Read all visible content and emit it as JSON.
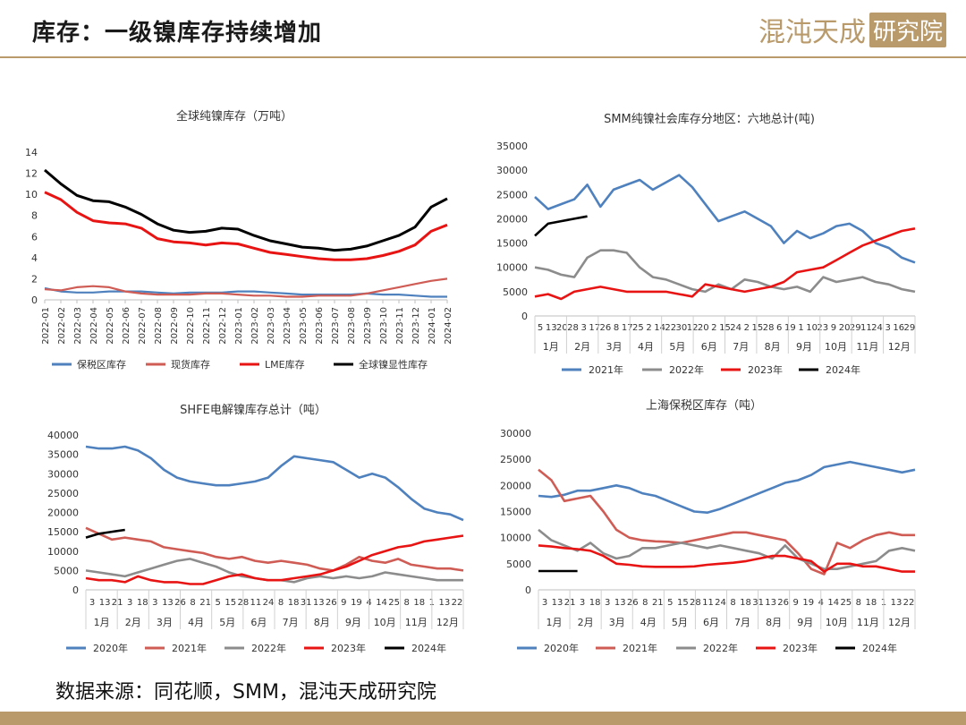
{
  "header": {
    "title": "库存：一级镍库存持续增加",
    "brand_main": "混沌天成",
    "brand_box": "研究院"
  },
  "footer": {
    "source": "数据来源：同花顺，SMM，混沌天成研究院"
  },
  "colors": {
    "blue": "#4e81bd",
    "salmon": "#cf5c55",
    "gray": "#8c8c8c",
    "red": "#e81414",
    "black": "#000000",
    "gold": "#b99a6b"
  },
  "chart_data": [
    {
      "id": "global",
      "type": "line",
      "title": "全球纯镍库存（万吨）",
      "ylim": [
        0,
        14
      ],
      "yticks": [
        0,
        2,
        4,
        6,
        8,
        10,
        12,
        14
      ],
      "x": [
        "2022-01",
        "2022-02",
        "2022-03",
        "2022-04",
        "2022-05",
        "2022-06",
        "2022-07",
        "2022-08",
        "2022-09",
        "2022-10",
        "2022-11",
        "2022-12",
        "2023-01",
        "2023-02",
        "2023-03",
        "2023-04",
        "2023-05",
        "2023-06",
        "2023-07",
        "2023-08",
        "2023-09",
        "2023-10",
        "2023-11",
        "2023-12",
        "2024-01",
        "2024-02"
      ],
      "series": [
        {
          "name": "保税区库存",
          "color": "#4e81bd",
          "values": [
            1.1,
            0.8,
            0.7,
            0.7,
            0.8,
            0.8,
            0.8,
            0.7,
            0.6,
            0.7,
            0.7,
            0.7,
            0.8,
            0.8,
            0.7,
            0.6,
            0.5,
            0.5,
            0.5,
            0.5,
            0.6,
            0.5,
            0.5,
            0.4,
            0.3,
            0.3
          ]
        },
        {
          "name": "现货库存",
          "color": "#cf5c55",
          "values": [
            1.0,
            0.9,
            1.2,
            1.3,
            1.2,
            0.8,
            0.6,
            0.5,
            0.5,
            0.5,
            0.6,
            0.6,
            0.5,
            0.4,
            0.4,
            0.3,
            0.3,
            0.4,
            0.4,
            0.4,
            0.6,
            0.9,
            1.2,
            1.5,
            1.8,
            2.0
          ]
        },
        {
          "name": "LME库存",
          "color": "#e81414",
          "values": [
            10.2,
            9.5,
            8.3,
            7.5,
            7.3,
            7.2,
            6.8,
            5.8,
            5.5,
            5.4,
            5.2,
            5.4,
            5.3,
            4.9,
            4.5,
            4.3,
            4.1,
            3.9,
            3.8,
            3.8,
            3.9,
            4.2,
            4.6,
            5.2,
            6.5,
            7.1
          ]
        },
        {
          "name": "全球镍显性库存",
          "color": "#000000",
          "values": [
            12.3,
            11.0,
            9.9,
            9.4,
            9.3,
            8.8,
            8.1,
            7.2,
            6.6,
            6.4,
            6.5,
            6.8,
            6.7,
            6.1,
            5.6,
            5.3,
            5.0,
            4.9,
            4.7,
            4.8,
            5.1,
            5.6,
            6.1,
            6.9,
            8.8,
            9.6
          ]
        }
      ]
    },
    {
      "id": "smm",
      "type": "line",
      "title": "SMM纯镍社会库存分地区：六地总计(吨)",
      "ylim": [
        0,
        35000
      ],
      "yticks": [
        0,
        5000,
        10000,
        15000,
        20000,
        25000,
        30000,
        35000
      ],
      "tick_labels": [
        "5",
        "13",
        "20",
        "28",
        "3",
        "17",
        "26",
        "8",
        "17",
        "25",
        "2",
        "14",
        "22",
        "30",
        "12",
        "20",
        "2",
        "15",
        "24",
        "2",
        "15",
        "28",
        "6",
        "19",
        "1",
        "10",
        "23",
        "9",
        "20",
        "29",
        "11",
        "24",
        "3",
        "16",
        "29"
      ],
      "months": [
        "1月",
        "2月",
        "3月",
        "4月",
        "5月",
        "6月",
        "7月",
        "8月",
        "9月",
        "10月",
        "11月",
        "12月"
      ],
      "series": [
        {
          "name": "2021年",
          "color": "#4e81bd",
          "values": [
            24500,
            22000,
            23000,
            24000,
            27000,
            22500,
            26000,
            27000,
            28000,
            26000,
            27500,
            29000,
            26500,
            23000,
            19500,
            20500,
            21500,
            20000,
            18500,
            15000,
            17500,
            16000,
            17000,
            18500,
            19000,
            17500,
            15000,
            14000,
            12000,
            11000
          ]
        },
        {
          "name": "2022年",
          "color": "#8c8c8c",
          "values": [
            10000,
            9500,
            8500,
            8000,
            12000,
            13500,
            13500,
            13000,
            10000,
            8000,
            7500,
            6500,
            5500,
            5000,
            6500,
            5500,
            7500,
            7000,
            6000,
            5500,
            6000,
            5000,
            8000,
            7000,
            7500,
            8000,
            7000,
            6500,
            5500,
            5000
          ]
        },
        {
          "name": "2023年",
          "color": "#e81414",
          "values": [
            4000,
            4500,
            3500,
            5000,
            5500,
            6000,
            5500,
            5000,
            5000,
            5000,
            5000,
            4500,
            4000,
            6500,
            6000,
            5500,
            5000,
            5500,
            6000,
            7000,
            9000,
            9500,
            10000,
            11500,
            13000,
            14500,
            15500,
            16500,
            17500,
            18000
          ]
        },
        {
          "name": "2024年",
          "color": "#000000",
          "values": [
            16500,
            19000,
            19500,
            20000,
            20500
          ]
        }
      ]
    },
    {
      "id": "shfe",
      "type": "line",
      "title": "SHFE电解镍库存总计（吨）",
      "ylim": [
        0,
        40000
      ],
      "yticks": [
        0,
        5000,
        10000,
        15000,
        20000,
        25000,
        30000,
        35000,
        40000
      ],
      "tick_labels": [
        "3",
        "13",
        "21",
        "3",
        "18",
        "3",
        "13",
        "26",
        "8",
        "21",
        "5",
        "15",
        "28",
        "11",
        "24",
        "8",
        "18",
        "31",
        "13",
        "26",
        "9",
        "19",
        "4",
        "14",
        "25",
        "8",
        "18",
        "1",
        "13",
        "22"
      ],
      "months": [
        "1月",
        "2月",
        "3月",
        "4月",
        "5月",
        "6月",
        "7月",
        "8月",
        "9月",
        "10月",
        "11月",
        "12月"
      ],
      "series": [
        {
          "name": "2020年",
          "color": "#4e81bd",
          "values": [
            37000,
            36500,
            36500,
            37000,
            36000,
            34000,
            31000,
            29000,
            28000,
            27500,
            27000,
            27000,
            27500,
            28000,
            29000,
            32000,
            34500,
            34000,
            33500,
            33000,
            31000,
            29000,
            30000,
            29000,
            26500,
            23500,
            21000,
            20000,
            19500,
            18000
          ]
        },
        {
          "name": "2021年",
          "color": "#cf5c55",
          "values": [
            16000,
            14500,
            13000,
            13500,
            13000,
            12500,
            11000,
            10500,
            10000,
            9500,
            8500,
            8000,
            8500,
            7500,
            7000,
            7500,
            7000,
            6500,
            5500,
            5000,
            6500,
            8500,
            7500,
            7000,
            8000,
            6500,
            6000,
            5500,
            5500,
            5000
          ]
        },
        {
          "name": "2022年",
          "color": "#8c8c8c",
          "values": [
            5000,
            4500,
            4000,
            3500,
            4500,
            5500,
            6500,
            7500,
            8000,
            7000,
            6000,
            4500,
            3500,
            3000,
            2500,
            2500,
            2000,
            3000,
            3500,
            3000,
            3500,
            3000,
            3500,
            4500,
            4000,
            3500,
            3000,
            2500,
            2500,
            2500
          ]
        },
        {
          "name": "2023年",
          "color": "#e81414",
          "values": [
            3000,
            2500,
            2500,
            2000,
            3500,
            2500,
            2000,
            2000,
            1500,
            1500,
            2500,
            3500,
            4000,
            3000,
            2500,
            2500,
            3000,
            3500,
            4000,
            5000,
            6000,
            7500,
            9000,
            10000,
            11000,
            11500,
            12500,
            13000,
            13500,
            14000
          ]
        },
        {
          "name": "2024年",
          "color": "#000000",
          "values": [
            13500,
            14500,
            15000,
            15500
          ]
        }
      ]
    },
    {
      "id": "bonded",
      "type": "line",
      "title": "上海保税区库存（吨）",
      "ylim": [
        0,
        30000
      ],
      "yticks": [
        0,
        5000,
        10000,
        15000,
        20000,
        25000,
        30000
      ],
      "tick_labels": [
        "3",
        "13",
        "21",
        "3",
        "18",
        "3",
        "13",
        "26",
        "8",
        "21",
        "5",
        "15",
        "28",
        "11",
        "24",
        "8",
        "18",
        "31",
        "13",
        "26",
        "9",
        "19",
        "4",
        "14",
        "25",
        "8",
        "18",
        "1",
        "13",
        "22"
      ],
      "months": [
        "1月",
        "2月",
        "3月",
        "4月",
        "5月",
        "6月",
        "7月",
        "8月",
        "9月",
        "10月",
        "11月",
        "12月"
      ],
      "series": [
        {
          "name": "2020年",
          "color": "#4e81bd",
          "values": [
            18000,
            17800,
            18200,
            19000,
            19000,
            19500,
            20000,
            19500,
            18500,
            18000,
            17000,
            16000,
            15000,
            14800,
            15500,
            16500,
            17500,
            18500,
            19500,
            20500,
            21000,
            22000,
            23500,
            24000,
            24500,
            24000,
            23500,
            23000,
            22500,
            23000
          ]
        },
        {
          "name": "2021年",
          "color": "#cf5c55",
          "values": [
            23000,
            21000,
            17000,
            17500,
            18000,
            15000,
            11500,
            10000,
            9500,
            9300,
            9200,
            9000,
            9500,
            10000,
            10500,
            11000,
            11000,
            10500,
            10000,
            9500,
            7000,
            4000,
            3000,
            9000,
            8000,
            9500,
            10500,
            11000,
            10500,
            10500
          ]
        },
        {
          "name": "2022年",
          "color": "#8c8c8c",
          "values": [
            11500,
            9500,
            8500,
            7500,
            9000,
            7000,
            6000,
            6500,
            8000,
            8000,
            8500,
            9000,
            8500,
            8000,
            8500,
            8000,
            7500,
            7000,
            6000,
            8500,
            6000,
            5000,
            4000,
            4000,
            4500,
            5000,
            5500,
            7500,
            8000,
            7500
          ]
        },
        {
          "name": "2023年",
          "color": "#e81414",
          "values": [
            8500,
            8300,
            8000,
            7800,
            7500,
            6500,
            5000,
            4800,
            4500,
            4400,
            4400,
            4400,
            4500,
            4800,
            5000,
            5200,
            5500,
            6000,
            6500,
            6500,
            6000,
            5500,
            3500,
            5000,
            5000,
            4500,
            4500,
            4000,
            3500,
            3500
          ]
        },
        {
          "name": "2024年",
          "color": "#000000",
          "values": [
            3600,
            3600,
            3600,
            3600
          ]
        }
      ]
    }
  ]
}
